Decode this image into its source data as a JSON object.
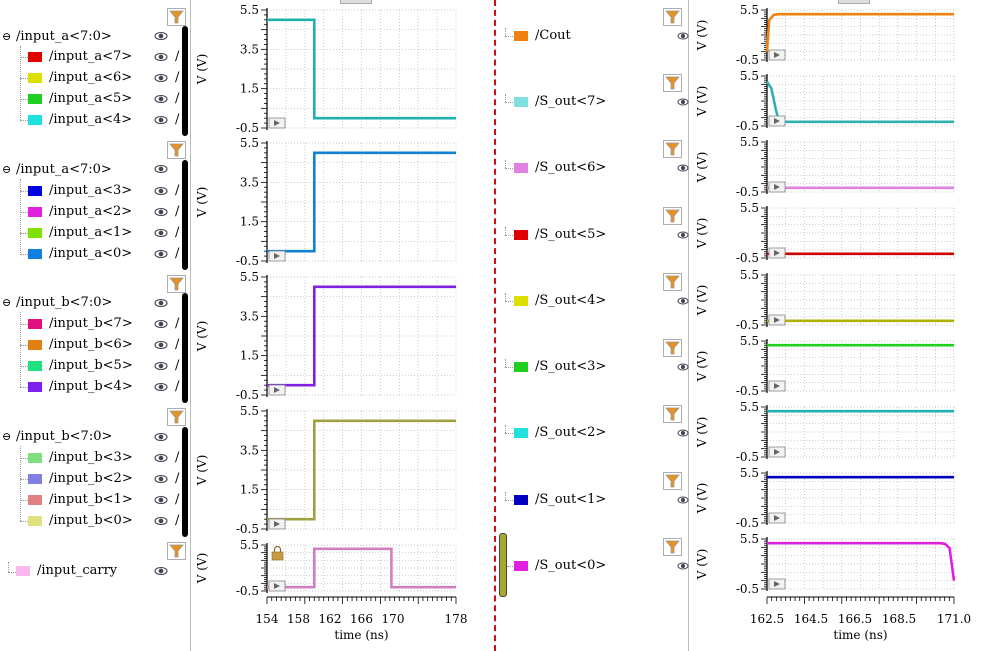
{
  "left_panel": {
    "groups": [
      {
        "label": "/input_a<7:0>",
        "signals": [
          {
            "name": "/input_a<7>",
            "color": "#e00000"
          },
          {
            "name": "/input_a<6>",
            "color": "#dede00"
          },
          {
            "name": "/input_a<5>",
            "color": "#20d020"
          },
          {
            "name": "/input_a<4>",
            "color": "#20e0e0"
          }
        ]
      },
      {
        "label": "/input_a<7:0>",
        "signals": [
          {
            "name": "/input_a<3>",
            "color": "#0000e0"
          },
          {
            "name": "/input_a<2>",
            "color": "#e020e0"
          },
          {
            "name": "/input_a<1>",
            "color": "#80e000"
          },
          {
            "name": "/input_a<0>",
            "color": "#1080e0"
          }
        ]
      },
      {
        "label": "/input_b<7:0>",
        "signals": [
          {
            "name": "/input_b<7>",
            "color": "#e01080"
          },
          {
            "name": "/input_b<6>",
            "color": "#e08010"
          },
          {
            "name": "/input_b<5>",
            "color": "#20e080"
          },
          {
            "name": "/input_b<4>",
            "color": "#8020f0"
          }
        ]
      },
      {
        "label": "/input_b<7:0>",
        "signals": [
          {
            "name": "/input_b<3>",
            "color": "#80e080"
          },
          {
            "name": "/input_b<2>",
            "color": "#8080e0"
          },
          {
            "name": "/input_b<1>",
            "color": "#e08080"
          },
          {
            "name": "/input_b<0>",
            "color": "#e0e080"
          }
        ]
      }
    ],
    "carry": {
      "name": "/input_carry",
      "color": "#f8b8f0"
    },
    "slash": "/"
  },
  "right_panel": {
    "signals": [
      {
        "name": "/Cout",
        "color": "#f08010"
      },
      {
        "name": "/S_out<7>",
        "color": "#80e0e0"
      },
      {
        "name": "/S_out<6>",
        "color": "#e080e0"
      },
      {
        "name": "/S_out<5>",
        "color": "#e00000"
      },
      {
        "name": "/S_out<4>",
        "color": "#dede00"
      },
      {
        "name": "/S_out<3>",
        "color": "#20d020"
      },
      {
        "name": "/S_out<2>",
        "color": "#20e0e0"
      },
      {
        "name": "/S_out<1>",
        "color": "#0000c0"
      },
      {
        "name": "/S_out<0>",
        "color": "#e020e0"
      }
    ]
  },
  "chart_data": [
    {
      "type": "line",
      "title": "",
      "xlabel": "time (ns)",
      "xlim": [
        154,
        178
      ],
      "xticks": [
        "154",
        "158",
        "162",
        "166",
        "170",
        "178"
      ],
      "ylabel": "V (V)",
      "grid": true,
      "plots": [
        {
          "ylim": [
            -0.5,
            5.5
          ],
          "yticks": [
            "5.5",
            "3.5",
            "1.5",
            "-0.5"
          ],
          "color": "#20b0b0",
          "series": [
            {
              "name": "input_a<7:4>",
              "x": [
                154,
                160,
                160,
                178
              ],
              "y": [
                5,
                5,
                0,
                0
              ]
            }
          ]
        },
        {
          "ylim": [
            -0.5,
            5.5
          ],
          "yticks": [
            "5.5",
            "3.5",
            "1.5",
            "-0.5"
          ],
          "color": "#1080d0",
          "series": [
            {
              "name": "input_a<3:0>",
              "x": [
                154,
                160,
                160,
                178
              ],
              "y": [
                0,
                0,
                5,
                5
              ]
            }
          ]
        },
        {
          "ylim": [
            -0.5,
            5.5
          ],
          "yticks": [
            "5.5",
            "3.5",
            "1.5",
            "-0.5"
          ],
          "color": "#8020e0",
          "series": [
            {
              "name": "input_b<7:4>",
              "x": [
                154,
                160,
                160,
                178
              ],
              "y": [
                0,
                0,
                5,
                5
              ]
            }
          ]
        },
        {
          "ylim": [
            -0.5,
            5.5
          ],
          "yticks": [
            "5.5",
            "3.5",
            "1.5",
            "-0.5"
          ],
          "color": "#a0a040",
          "series": [
            {
              "name": "input_b<3:0>",
              "x": [
                154,
                160,
                160,
                178
              ],
              "y": [
                0,
                0,
                5,
                5
              ]
            }
          ]
        },
        {
          "ylim": [
            -0.5,
            5.5
          ],
          "yticks": [
            "5.5",
            "-0.5"
          ],
          "color": "#d080c0",
          "series": [
            {
              "name": "input_carry",
              "x": [
                154,
                160,
                160,
                169.8,
                169.8,
                178
              ],
              "y": [
                0,
                0,
                5,
                5,
                0,
                0
              ]
            }
          ]
        }
      ]
    },
    {
      "type": "line",
      "title": "",
      "xlabel": "time (ns)",
      "xlim": [
        162.5,
        171.0
      ],
      "xticks": [
        "162.5",
        "164.5",
        "166.5",
        "168.5",
        "171.0"
      ],
      "ylabel": "V (V)",
      "grid": true,
      "plots": [
        {
          "ylim": [
            -0.5,
            5.5
          ],
          "yticks": [
            "5.5",
            "-0.5"
          ],
          "color": "#f08010",
          "series": [
            {
              "name": "Cout",
              "x": [
                162.5,
                162.6,
                162.8,
                163,
                171
              ],
              "y": [
                0.5,
                4.3,
                4.9,
                5,
                5
              ]
            }
          ]
        },
        {
          "ylim": [
            -0.5,
            5.5
          ],
          "yticks": [
            "5.5",
            "-0.5"
          ],
          "color": "#30b0b0",
          "series": [
            {
              "name": "S_out<7>",
              "x": [
                162.5,
                162.7,
                162.9,
                163.0,
                163.2,
                171
              ],
              "y": [
                4.8,
                4.0,
                1.5,
                0.5,
                0,
                0
              ]
            }
          ]
        },
        {
          "ylim": [
            -0.5,
            5.5
          ],
          "yticks": [
            "5.5",
            "-0.5"
          ],
          "color": "#e080e0",
          "series": [
            {
              "name": "S_out<6>",
              "x": [
                162.5,
                171
              ],
              "y": [
                0,
                0
              ]
            }
          ]
        },
        {
          "ylim": [
            -0.5,
            5.5
          ],
          "yticks": [
            "5.5",
            "-0.5"
          ],
          "color": "#d00000",
          "series": [
            {
              "name": "S_out<5>",
              "x": [
                162.5,
                171
              ],
              "y": [
                0,
                0
              ]
            }
          ]
        },
        {
          "ylim": [
            -0.5,
            5.5
          ],
          "yticks": [
            "5.5",
            "-0.5"
          ],
          "color": "#b0b000",
          "series": [
            {
              "name": "S_out<4>",
              "x": [
                162.5,
                171
              ],
              "y": [
                0,
                0
              ]
            }
          ]
        },
        {
          "ylim": [
            -0.5,
            5.5
          ],
          "yticks": [
            "5.5",
            "-0.5"
          ],
          "color": "#20d020",
          "series": [
            {
              "name": "S_out<3>",
              "x": [
                162.5,
                171
              ],
              "y": [
                5,
                5
              ]
            }
          ]
        },
        {
          "ylim": [
            -0.5,
            5.5
          ],
          "yticks": [
            "5.5",
            "-0.5"
          ],
          "color": "#20b0b0",
          "series": [
            {
              "name": "S_out<2>",
              "x": [
                162.5,
                171
              ],
              "y": [
                5,
                5
              ]
            }
          ]
        },
        {
          "ylim": [
            -0.5,
            5.5
          ],
          "yticks": [
            "5.5",
            "-0.5"
          ],
          "color": "#0000c0",
          "series": [
            {
              "name": "S_out<1>",
              "x": [
                162.5,
                171
              ],
              "y": [
                5,
                5
              ]
            }
          ]
        },
        {
          "ylim": [
            -0.5,
            5.5
          ],
          "yticks": [
            "5.5",
            "-0.5"
          ],
          "color": "#e020e0",
          "series": [
            {
              "name": "S_out<0>",
              "x": [
                162.5,
                170.4,
                170.6,
                170.8,
                171
              ],
              "y": [
                5,
                5,
                4.9,
                4.4,
                0.5
              ]
            }
          ]
        }
      ]
    }
  ]
}
